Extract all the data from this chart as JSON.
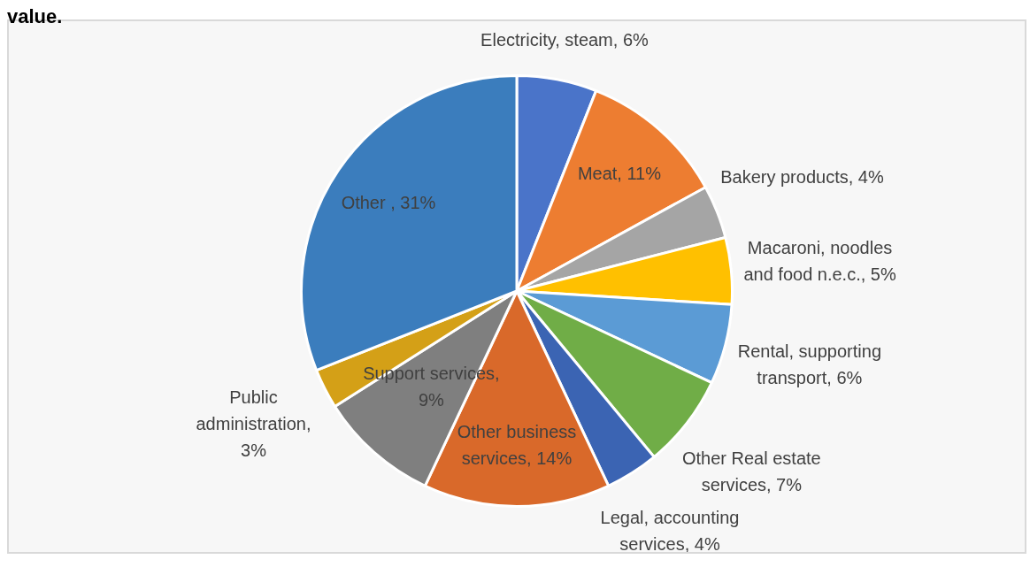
{
  "chart_data": {
    "type": "pie",
    "title": "value.",
    "categories": [
      "Electricity, steam, 6%",
      "Meat, 11%",
      "Bakery products, 4%",
      "Macaroni, noodles and food n.e.c., 5%",
      "Rental, supporting transport, 6%",
      "Other Real estate services, 7%",
      "Legal, accounting services, 4%",
      "Other business services, 14%",
      "Support services, 9%",
      "Public administration, 3%",
      "Other , 31%"
    ],
    "values": [
      6,
      11,
      4,
      5,
      6,
      7,
      4,
      14,
      9,
      3,
      31
    ],
    "colors": [
      "#4a74c9",
      "#ed7d31",
      "#a5a5a5",
      "#ffc000",
      "#5b9bd5",
      "#70ad47",
      "#3b64b3",
      "#d9692a",
      "#7f7f7f",
      "#d4a017",
      "#3b7dbd"
    ],
    "legend": false
  }
}
